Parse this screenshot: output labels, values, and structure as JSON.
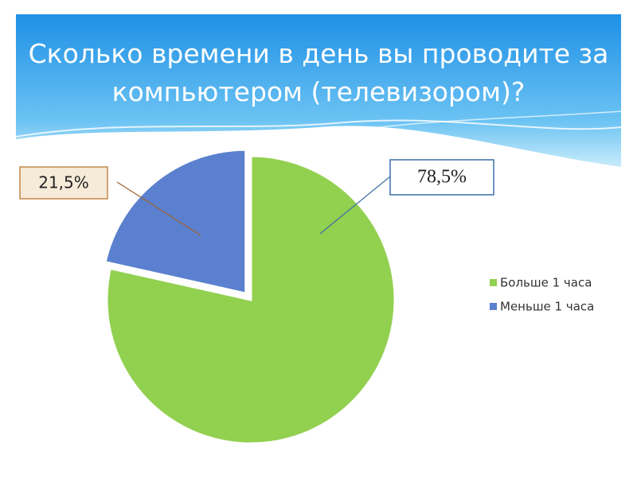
{
  "chart_data": {
    "type": "pie",
    "title": "Сколько времени в день вы проводите за компьютером (телевизором)?",
    "categories": [
      "Больше 1 часа",
      "Меньше 1 часа"
    ],
    "values": [
      78.5,
      21.5
    ],
    "value_labels": [
      "78,5%",
      "21,5%"
    ],
    "colors": [
      "#92d050",
      "#5b80cf"
    ],
    "legend": "right"
  }
}
